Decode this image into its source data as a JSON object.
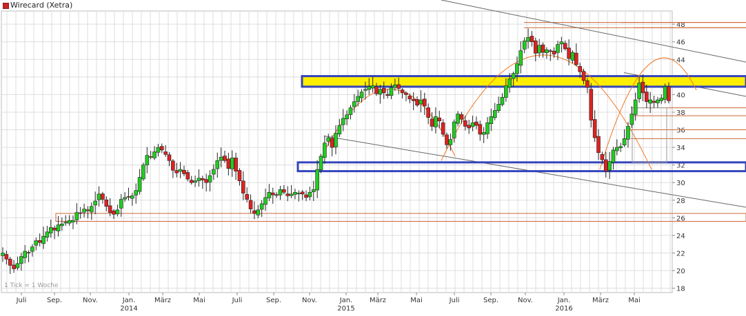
{
  "header": {
    "title": "Wirecard (Xetra)",
    "legend_color": "#cc2222"
  },
  "footer": {
    "tick_note": "1 Tick = 1 Woche"
  },
  "chart_data": {
    "type": "candlestick",
    "title": "Wirecard (Xetra)",
    "y_ticks": [
      18,
      20,
      22,
      24,
      26,
      28,
      30,
      32,
      34,
      36,
      38,
      40,
      42,
      44,
      46,
      48
    ],
    "ylim": [
      17.5,
      49.5
    ],
    "x_ticks": [
      {
        "label": "Juli",
        "year": "",
        "month": "2013-07"
      },
      {
        "label": "Sep.",
        "year": "",
        "month": "2013-09"
      },
      {
        "label": "Nov.",
        "year": "",
        "month": "2013-11"
      },
      {
        "label": "Jan.",
        "year": "2014",
        "month": "2014-01"
      },
      {
        "label": "März",
        "year": "",
        "month": "2014-03"
      },
      {
        "label": "Mai",
        "year": "",
        "month": "2014-05"
      },
      {
        "label": "Juli",
        "year": "",
        "month": "2014-07"
      },
      {
        "label": "Sep.",
        "year": "",
        "month": "2014-09"
      },
      {
        "label": "Nov.",
        "year": "",
        "month": "2014-11"
      },
      {
        "label": "Jan.",
        "year": "2015",
        "month": "2015-01"
      },
      {
        "label": "März",
        "year": "",
        "month": "2015-03"
      },
      {
        "label": "Mai",
        "year": "",
        "month": "2015-05"
      },
      {
        "label": "Juli",
        "year": "",
        "month": "2015-07"
      },
      {
        "label": "Sep.",
        "year": "",
        "month": "2015-09"
      },
      {
        "label": "Nov.",
        "year": "",
        "month": "2015-11"
      },
      {
        "label": "Jan.",
        "year": "2016",
        "month": "2016-01"
      },
      {
        "label": "März",
        "year": "",
        "month": "2016-03"
      },
      {
        "label": "Mai",
        "year": "",
        "month": "2016-05"
      }
    ],
    "colors": {
      "up": "#22cc22",
      "down": "#dd2222",
      "grid": "#dddddd",
      "zone_yellow": "#ffee00",
      "zone_border": "#3344bb",
      "resistance": "#cc6633",
      "trend": "#666666",
      "arc": "#ee7722"
    },
    "weekly_close": [
      22.0,
      21.3,
      20.6,
      20.2,
      20.8,
      21.6,
      22.2,
      22.0,
      22.7,
      23.4,
      23.2,
      23.9,
      24.4,
      24.9,
      24.6,
      25.2,
      25.3,
      25.5,
      25.7,
      25.7,
      26.6,
      26.5,
      27.0,
      26.8,
      27.3,
      27.9,
      28.7,
      28.1,
      27.3,
      26.6,
      26.4,
      26.9,
      28.1,
      28.3,
      28.4,
      28.5,
      29.1,
      30.6,
      32.0,
      33.1,
      32.9,
      33.5,
      34.0,
      33.7,
      33.2,
      32.5,
      31.4,
      31.1,
      31.5,
      31.0,
      30.4,
      30.0,
      30.2,
      30.5,
      30.3,
      30.0,
      30.8,
      31.5,
      32.5,
      32.9,
      32.5,
      31.6,
      32.8,
      31.3,
      30.2,
      28.8,
      28.1,
      27.0,
      26.5,
      26.9,
      27.6,
      28.3,
      28.9,
      28.6,
      28.6,
      29.2,
      28.9,
      28.5,
      28.7,
      28.9,
      28.8,
      28.7,
      28.3,
      28.9,
      29.2,
      31.5,
      33.0,
      34.5,
      35.1,
      34.0,
      35.6,
      36.5,
      37.3,
      37.7,
      38.5,
      39.2,
      39.8,
      40.3,
      40.6,
      40.9,
      41.0,
      40.1,
      40.6,
      40.2,
      39.9,
      40.8,
      41.1,
      40.7,
      40.2,
      40.0,
      39.5,
      39.3,
      38.8,
      39.4,
      38.7,
      37.4,
      36.4,
      37.5,
      37.0,
      35.5,
      34.3,
      34.9,
      36.9,
      37.8,
      37.2,
      36.4,
      36.2,
      36.8,
      36.5,
      35.5,
      35.7,
      36.8,
      37.5,
      38.2,
      38.9,
      39.7,
      41.0,
      41.8,
      42.4,
      43.5,
      45.0,
      46.1,
      46.5,
      46.0,
      44.7,
      45.6,
      44.8,
      45.1,
      44.9,
      44.6,
      45.7,
      46.0,
      45.2,
      44.1,
      44.8,
      43.4,
      42.6,
      41.6,
      40.8,
      37.1,
      35.1,
      33.4,
      32.6,
      31.3,
      32.4,
      33.7,
      34.0,
      34.1,
      35.0,
      36.4,
      37.8,
      39.4,
      41.3,
      40.2,
      39.2,
      39.4,
      39.1,
      39.4,
      39.6,
      40.9,
      39.3
    ]
  }
}
